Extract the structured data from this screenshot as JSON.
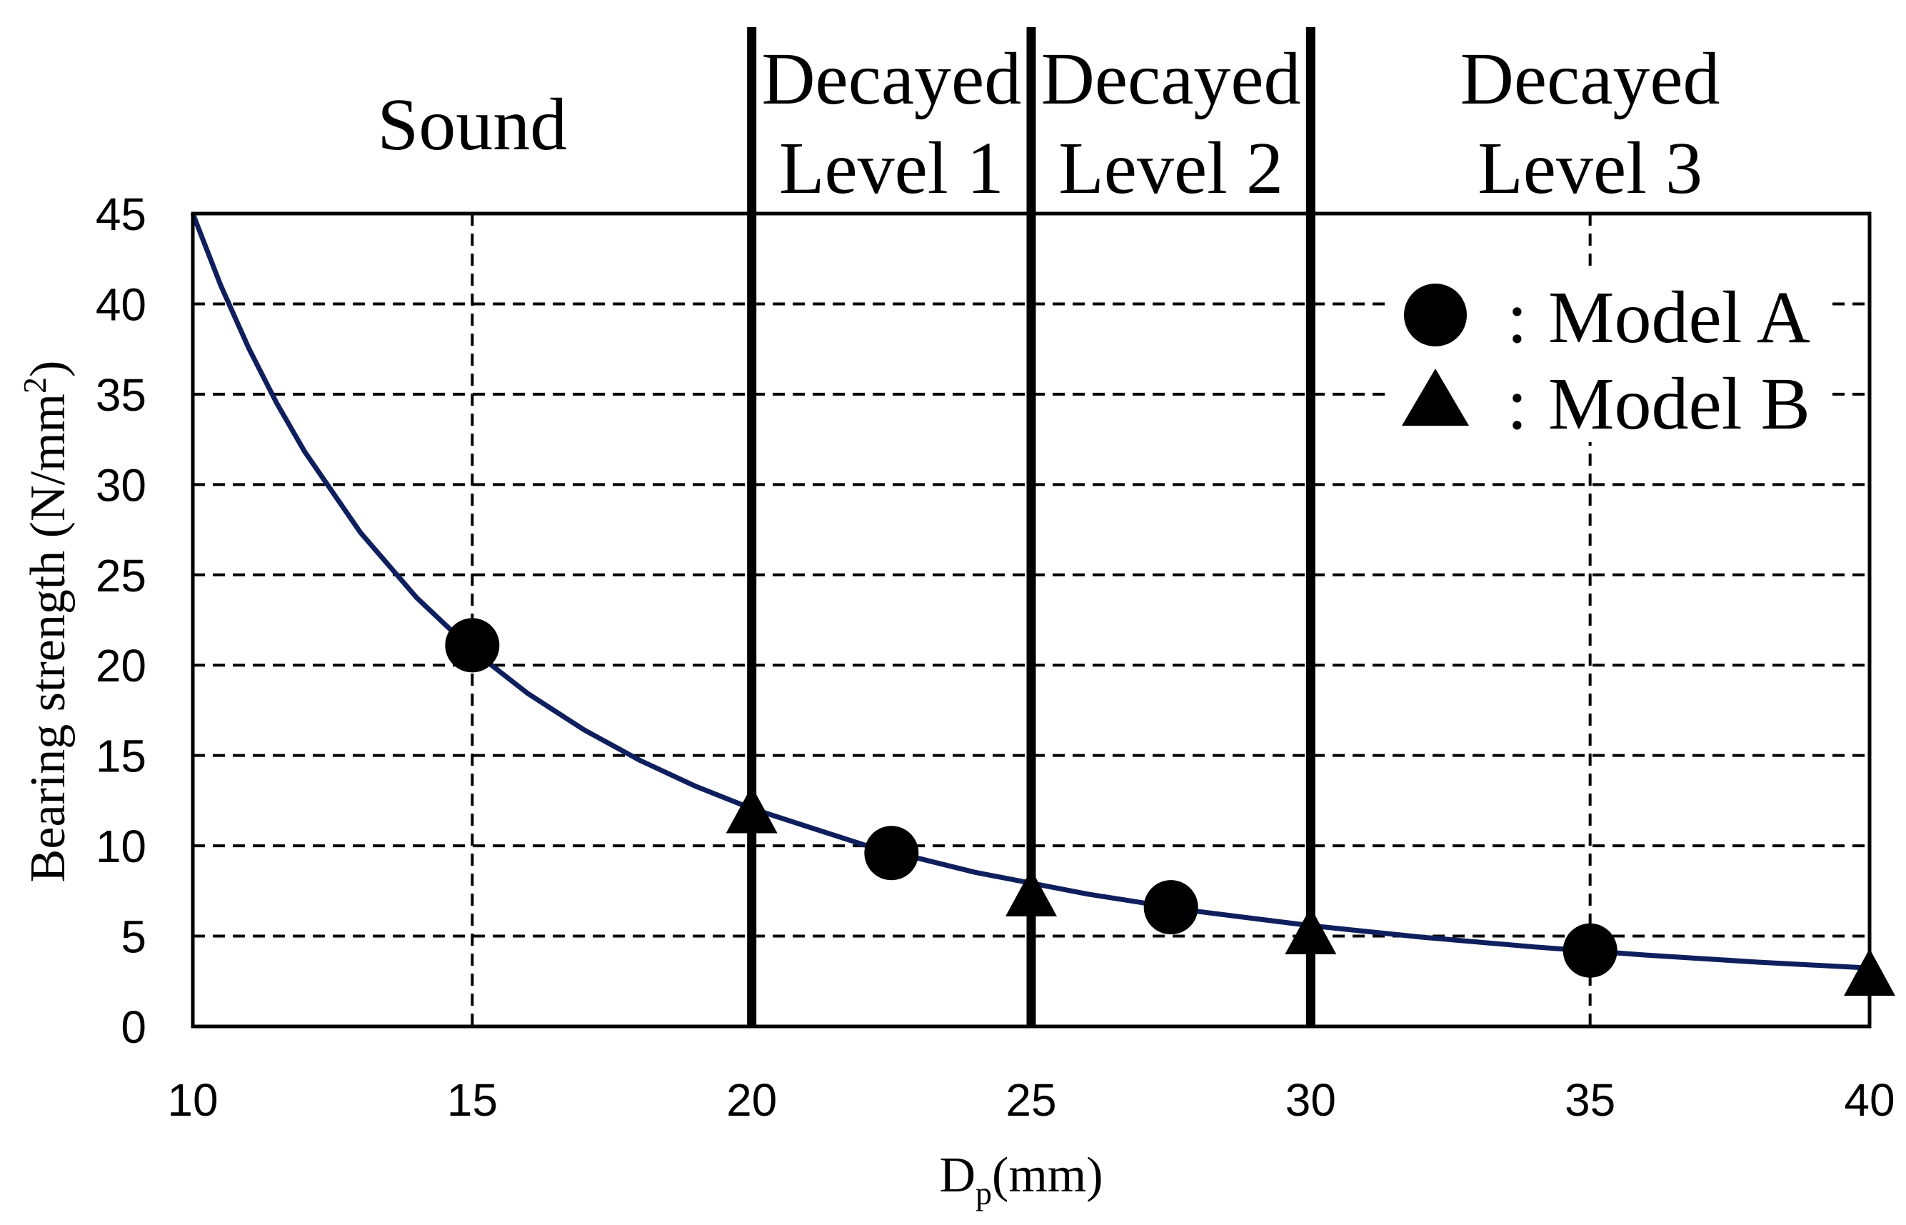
{
  "chart_data": {
    "type": "line",
    "title": "",
    "xlabel": {
      "base": "D",
      "sub": "p",
      "unit": "(mm)"
    },
    "ylabel": {
      "base": "Bearing strength (N/mm",
      "sup": "2",
      "close": ")"
    },
    "xlim": [
      10,
      40
    ],
    "ylim": [
      0,
      45
    ],
    "x_ticks": [
      10,
      15,
      20,
      25,
      30,
      35,
      40
    ],
    "y_ticks": [
      0,
      5,
      10,
      15,
      20,
      25,
      30,
      35,
      40,
      45
    ],
    "grid": true,
    "boundaries": [
      20,
      25,
      30
    ],
    "regions": [
      {
        "label": [
          "Sound"
        ],
        "from": 10,
        "to": 20
      },
      {
        "label": [
          "Decayed",
          "Level 1"
        ],
        "from": 20,
        "to": 25
      },
      {
        "label": [
          "Decayed",
          "Level 2"
        ],
        "from": 25,
        "to": 30
      },
      {
        "label": [
          "Decayed",
          "Level 3"
        ],
        "from": 30,
        "to": 40
      }
    ],
    "series": [
      {
        "marker": "none",
        "color": "#0f1f5e",
        "x": [
          10,
          10.5,
          11,
          11.5,
          12,
          13,
          14,
          15,
          16,
          17,
          18,
          19,
          20,
          22,
          24,
          26,
          28,
          30,
          32,
          34,
          36,
          38,
          40
        ],
        "y": [
          45,
          41.02,
          37.55,
          34.51,
          31.83,
          27.34,
          23.75,
          20.83,
          18.42,
          16.42,
          14.73,
          13.29,
          12.06,
          10.06,
          8.53,
          7.33,
          6.36,
          5.58,
          4.94,
          4.4,
          3.95,
          3.56,
          3.23
        ]
      },
      {
        "name": "Model A",
        "marker": "circle",
        "color": "#000000",
        "x": [
          15,
          22.5,
          27.5,
          35
        ],
        "y": [
          21.1,
          9.6,
          6.6,
          4.2
        ]
      },
      {
        "name": "Model B",
        "marker": "triangle",
        "color": "#000000",
        "x": [
          20,
          25,
          30,
          40
        ],
        "y": [
          12.0,
          7.4,
          5.3,
          3.0
        ]
      }
    ],
    "legend": {
      "position": "top-right",
      "separator": ":",
      "entries": [
        "Model A",
        "Model B"
      ]
    }
  }
}
